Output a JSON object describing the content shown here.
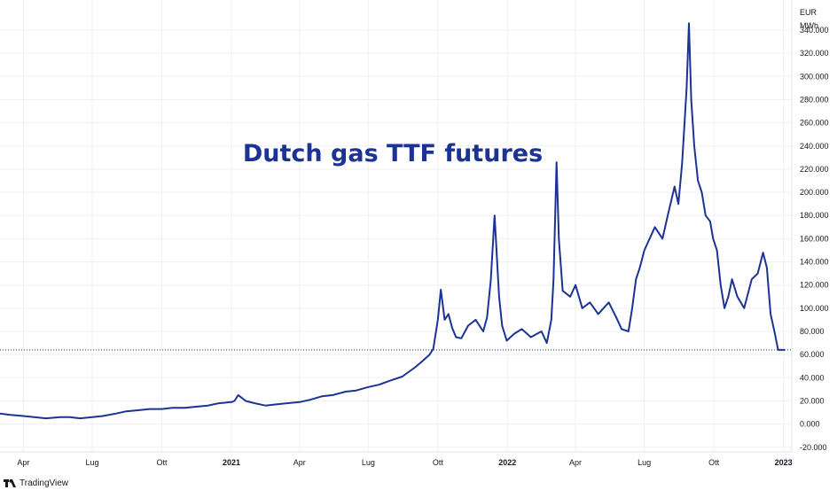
{
  "currency_label": "EUR",
  "unit_label": "MWh",
  "brand": "TradingView",
  "chart_data": {
    "type": "line",
    "title": "Dutch gas TTF futures",
    "xlabel": "",
    "ylabel": "",
    "ylim": [
      -24,
      366
    ],
    "y_ticks": [
      -20,
      0,
      20,
      40,
      60,
      80,
      100,
      120,
      140,
      160,
      180,
      200,
      220,
      240,
      260,
      280,
      300,
      320,
      340
    ],
    "y_tick_labels": [
      "-20.000",
      "0.000",
      "20.000",
      "40.000",
      "60.000",
      "80.000",
      "100.000",
      "120.000",
      "140.000",
      "160.000",
      "180.000",
      "200.000",
      "220.000",
      "240.000",
      "260.000",
      "280.000",
      "300.000",
      "320.000",
      "340.000"
    ],
    "x_range": [
      "2020-03-01",
      "2023-01-12"
    ],
    "x_ticks": [
      {
        "date": "2020-04-01",
        "label": "Apr",
        "bold": false
      },
      {
        "date": "2020-07-01",
        "label": "Lug",
        "bold": false
      },
      {
        "date": "2020-10-01",
        "label": "Ott",
        "bold": false
      },
      {
        "date": "2021-01-01",
        "label": "2021",
        "bold": true
      },
      {
        "date": "2021-04-01",
        "label": "Apr",
        "bold": false
      },
      {
        "date": "2021-07-01",
        "label": "Lug",
        "bold": false
      },
      {
        "date": "2021-10-01",
        "label": "Ott",
        "bold": false
      },
      {
        "date": "2022-01-01",
        "label": "2022",
        "bold": true
      },
      {
        "date": "2022-04-01",
        "label": "Apr",
        "bold": false
      },
      {
        "date": "2022-07-01",
        "label": "Lug",
        "bold": false
      },
      {
        "date": "2022-10-01",
        "label": "Ott",
        "bold": false
      },
      {
        "date": "2023-01-01",
        "label": "2023",
        "bold": true
      }
    ],
    "last_value": 64.0,
    "grid": true,
    "series": [
      {
        "color": "#1c3394",
        "x": [
          "2020-03-01",
          "2020-03-15",
          "2020-04-01",
          "2020-04-15",
          "2020-05-01",
          "2020-05-20",
          "2020-06-01",
          "2020-06-15",
          "2020-07-01",
          "2020-07-15",
          "2020-08-01",
          "2020-08-15",
          "2020-09-01",
          "2020-09-15",
          "2020-10-01",
          "2020-10-15",
          "2020-11-01",
          "2020-11-15",
          "2020-12-01",
          "2020-12-15",
          "2021-01-01",
          "2021-01-05",
          "2021-01-10",
          "2021-01-20",
          "2021-02-01",
          "2021-02-15",
          "2021-03-01",
          "2021-03-15",
          "2021-04-01",
          "2021-04-15",
          "2021-05-01",
          "2021-05-15",
          "2021-06-01",
          "2021-06-15",
          "2021-07-01",
          "2021-07-15",
          "2021-08-01",
          "2021-08-15",
          "2021-09-01",
          "2021-09-10",
          "2021-09-20",
          "2021-09-25",
          "2021-10-01",
          "2021-10-05",
          "2021-10-10",
          "2021-10-15",
          "2021-10-20",
          "2021-10-25",
          "2021-11-01",
          "2021-11-10",
          "2021-11-20",
          "2021-11-30",
          "2021-12-05",
          "2021-12-10",
          "2021-12-15",
          "2021-12-21",
          "2021-12-25",
          "2021-12-31",
          "2022-01-10",
          "2022-01-20",
          "2022-02-01",
          "2022-02-15",
          "2022-02-22",
          "2022-02-28",
          "2022-03-03",
          "2022-03-07",
          "2022-03-10",
          "2022-03-15",
          "2022-03-25",
          "2022-04-01",
          "2022-04-10",
          "2022-04-20",
          "2022-05-01",
          "2022-05-15",
          "2022-05-25",
          "2022-06-01",
          "2022-06-10",
          "2022-06-15",
          "2022-06-20",
          "2022-06-25",
          "2022-07-01",
          "2022-07-15",
          "2022-07-25",
          "2022-08-01",
          "2022-08-10",
          "2022-08-15",
          "2022-08-20",
          "2022-08-26",
          "2022-08-29",
          "2022-09-01",
          "2022-09-05",
          "2022-09-10",
          "2022-09-15",
          "2022-09-20",
          "2022-09-26",
          "2022-09-30",
          "2022-10-05",
          "2022-10-10",
          "2022-10-15",
          "2022-10-20",
          "2022-10-25",
          "2022-11-01",
          "2022-11-10",
          "2022-11-20",
          "2022-11-28",
          "2022-12-05",
          "2022-12-10",
          "2022-12-15",
          "2022-12-20",
          "2022-12-25",
          "2022-12-30",
          "2023-01-03"
        ],
        "values": [
          9,
          8,
          7,
          6,
          5,
          6,
          6,
          5,
          6,
          7,
          9,
          11,
          12,
          13,
          13,
          14,
          14,
          15,
          16,
          18,
          19,
          20,
          25,
          20,
          18,
          16,
          17,
          18,
          19,
          21,
          24,
          25,
          28,
          29,
          32,
          34,
          38,
          41,
          49,
          54,
          60,
          65,
          90,
          116,
          90,
          95,
          83,
          75,
          74,
          85,
          90,
          80,
          92,
          124,
          180,
          110,
          85,
          72,
          78,
          82,
          75,
          80,
          70,
          90,
          125,
          226,
          160,
          115,
          110,
          120,
          100,
          105,
          95,
          105,
          92,
          82,
          80,
          100,
          125,
          135,
          150,
          170,
          160,
          180,
          205,
          190,
          225,
          290,
          346,
          280,
          240,
          210,
          200,
          180,
          175,
          160,
          150,
          120,
          100,
          110,
          125,
          110,
          100,
          125,
          130,
          148,
          135,
          95,
          80,
          64,
          64,
          64
        ]
      }
    ]
  }
}
